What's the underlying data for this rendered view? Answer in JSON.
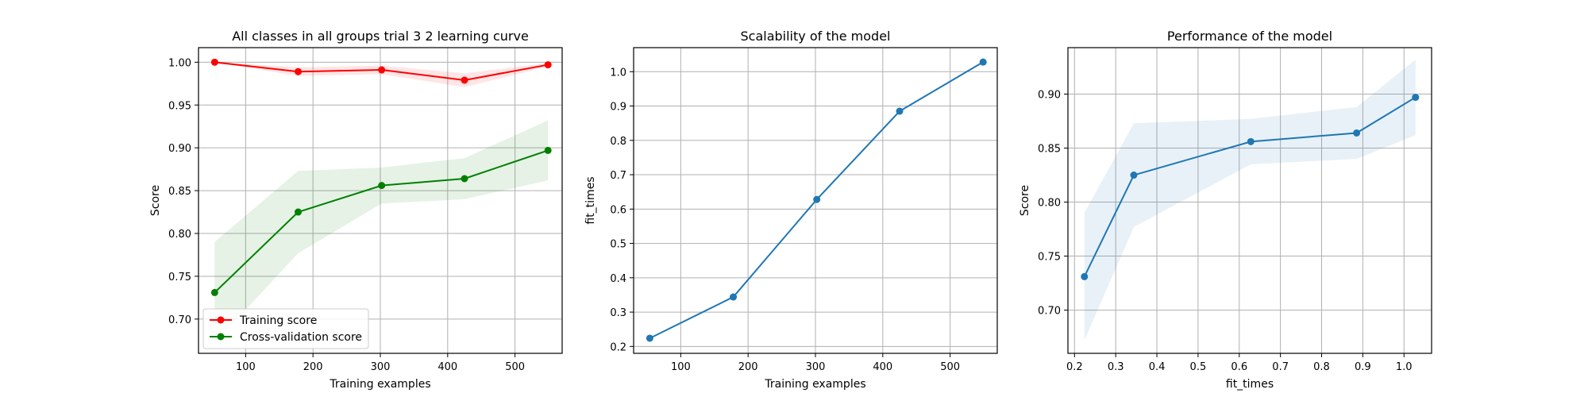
{
  "chart_data": [
    {
      "type": "line",
      "title": "All classes in all groups trial 3 2 learning curve",
      "xlabel": "Training examples",
      "ylabel": "Score",
      "xlim": [
        30,
        570
      ],
      "ylim": [
        0.66,
        1.017
      ],
      "xticks": [
        "100",
        "200",
        "300",
        "400",
        "500"
      ],
      "yticks": [
        "0.70",
        "0.75",
        "0.80",
        "0.85",
        "0.90",
        "0.95",
        "1.00"
      ],
      "grid": true,
      "legend_position": "lower-left",
      "x": [
        54,
        178,
        302,
        425,
        549
      ],
      "series": [
        {
          "name": "Training score",
          "color": "#ff0000",
          "values": [
            1.0,
            0.989,
            0.991,
            0.979,
            0.997
          ],
          "band_low": [
            1.0,
            0.984,
            0.986,
            0.971,
            0.995
          ],
          "band_high": [
            1.0,
            0.994,
            0.996,
            0.987,
            0.999
          ]
        },
        {
          "name": "Cross-validation score",
          "color": "#008000",
          "values": [
            0.731,
            0.825,
            0.856,
            0.864,
            0.897
          ],
          "band_low": [
            0.672,
            0.777,
            0.835,
            0.84,
            0.862
          ],
          "band_high": [
            0.79,
            0.873,
            0.877,
            0.888,
            0.932
          ]
        }
      ]
    },
    {
      "type": "line",
      "title": "Scalability of the model",
      "xlabel": "Training examples",
      "ylabel": "fit_times",
      "xlim": [
        30,
        570
      ],
      "ylim": [
        0.18,
        1.07
      ],
      "xticks": [
        "100",
        "200",
        "300",
        "400",
        "500"
      ],
      "yticks": [
        "0.2",
        "0.3",
        "0.4",
        "0.5",
        "0.6",
        "0.7",
        "0.8",
        "0.9",
        "1.0"
      ],
      "grid": true,
      "x": [
        54,
        178,
        302,
        425,
        549
      ],
      "series": [
        {
          "color": "#1f77b4",
          "values": [
            0.224,
            0.344,
            0.628,
            0.885,
            1.028
          ],
          "band_low": [
            0.224,
            0.344,
            0.628,
            0.885,
            1.028
          ],
          "band_high": [
            0.224,
            0.344,
            0.628,
            0.885,
            1.028
          ]
        }
      ]
    },
    {
      "type": "line",
      "title": "Performance of the model",
      "xlabel": "fit_times",
      "ylabel": "Score",
      "xlim": [
        0.184,
        1.067
      ],
      "ylim": [
        0.66,
        0.943
      ],
      "xticks": [
        "0.2",
        "0.3",
        "0.4",
        "0.5",
        "0.6",
        "0.7",
        "0.8",
        "0.9",
        "1.0"
      ],
      "yticks": [
        "0.70",
        "0.75",
        "0.80",
        "0.85",
        "0.90"
      ],
      "grid": true,
      "x": [
        0.224,
        0.344,
        0.628,
        0.885,
        1.028
      ],
      "series": [
        {
          "color": "#1f77b4",
          "values": [
            0.731,
            0.825,
            0.856,
            0.864,
            0.897
          ],
          "band_low": [
            0.672,
            0.777,
            0.835,
            0.84,
            0.862
          ],
          "band_high": [
            0.79,
            0.873,
            0.877,
            0.888,
            0.932
          ]
        }
      ]
    }
  ]
}
